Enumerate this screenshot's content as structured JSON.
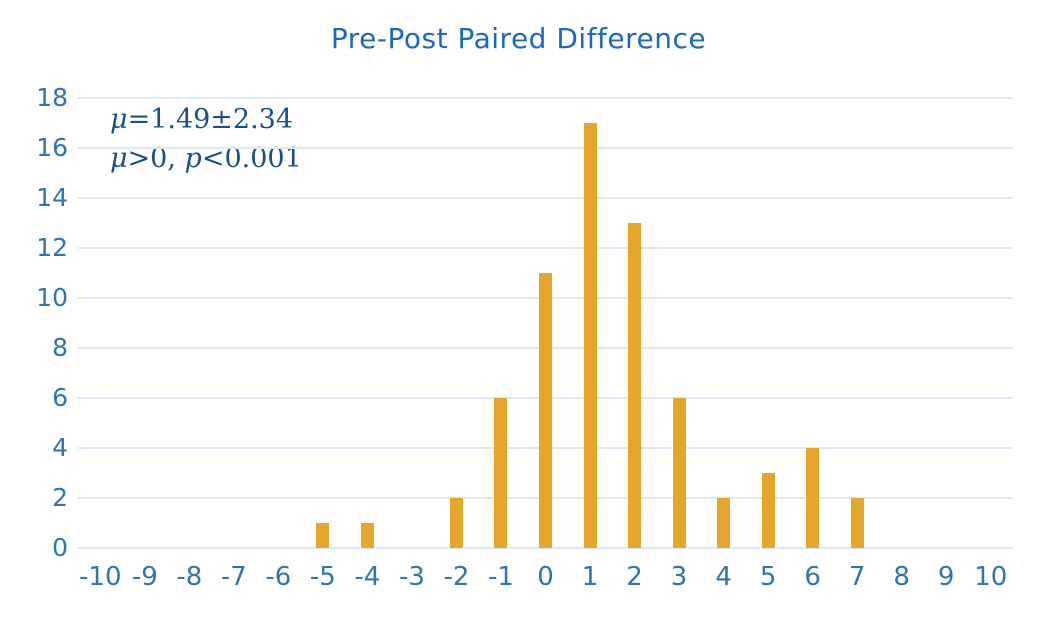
{
  "title": "Pre-Post Paired Difference",
  "annotation": {
    "line1_parts": [
      "μ",
      "=1.49±2.34"
    ],
    "line2_parts": [
      "μ",
      ">0,  ",
      "p",
      "<0.001"
    ]
  },
  "colors": {
    "title_text": "#1b6ac1",
    "annotation_text": "#1b4f8c",
    "tick_label_text": "#2e75b6",
    "bar_fill": "#e6a62c",
    "gridline": "#dce8f5",
    "background": "#ffffff"
  },
  "chart_data": {
    "type": "bar",
    "title": "Pre-Post Paired Difference",
    "xlabel": "",
    "ylabel": "",
    "categories": [
      -10,
      -9,
      -8,
      -7,
      -6,
      -5,
      -4,
      -3,
      -2,
      -1,
      0,
      1,
      2,
      3,
      4,
      5,
      6,
      7,
      8,
      9,
      10
    ],
    "values": [
      0,
      0,
      0,
      0,
      0,
      1,
      1,
      0,
      2,
      6,
      11,
      17,
      13,
      6,
      2,
      3,
      4,
      2,
      0,
      0,
      0
    ],
    "ylim": [
      0,
      18
    ],
    "ytick_step": 2,
    "grid": "horizontal",
    "legend": "none",
    "annotations": [
      "μ=1.49±2.34",
      "μ>0,  p<0.001"
    ]
  }
}
